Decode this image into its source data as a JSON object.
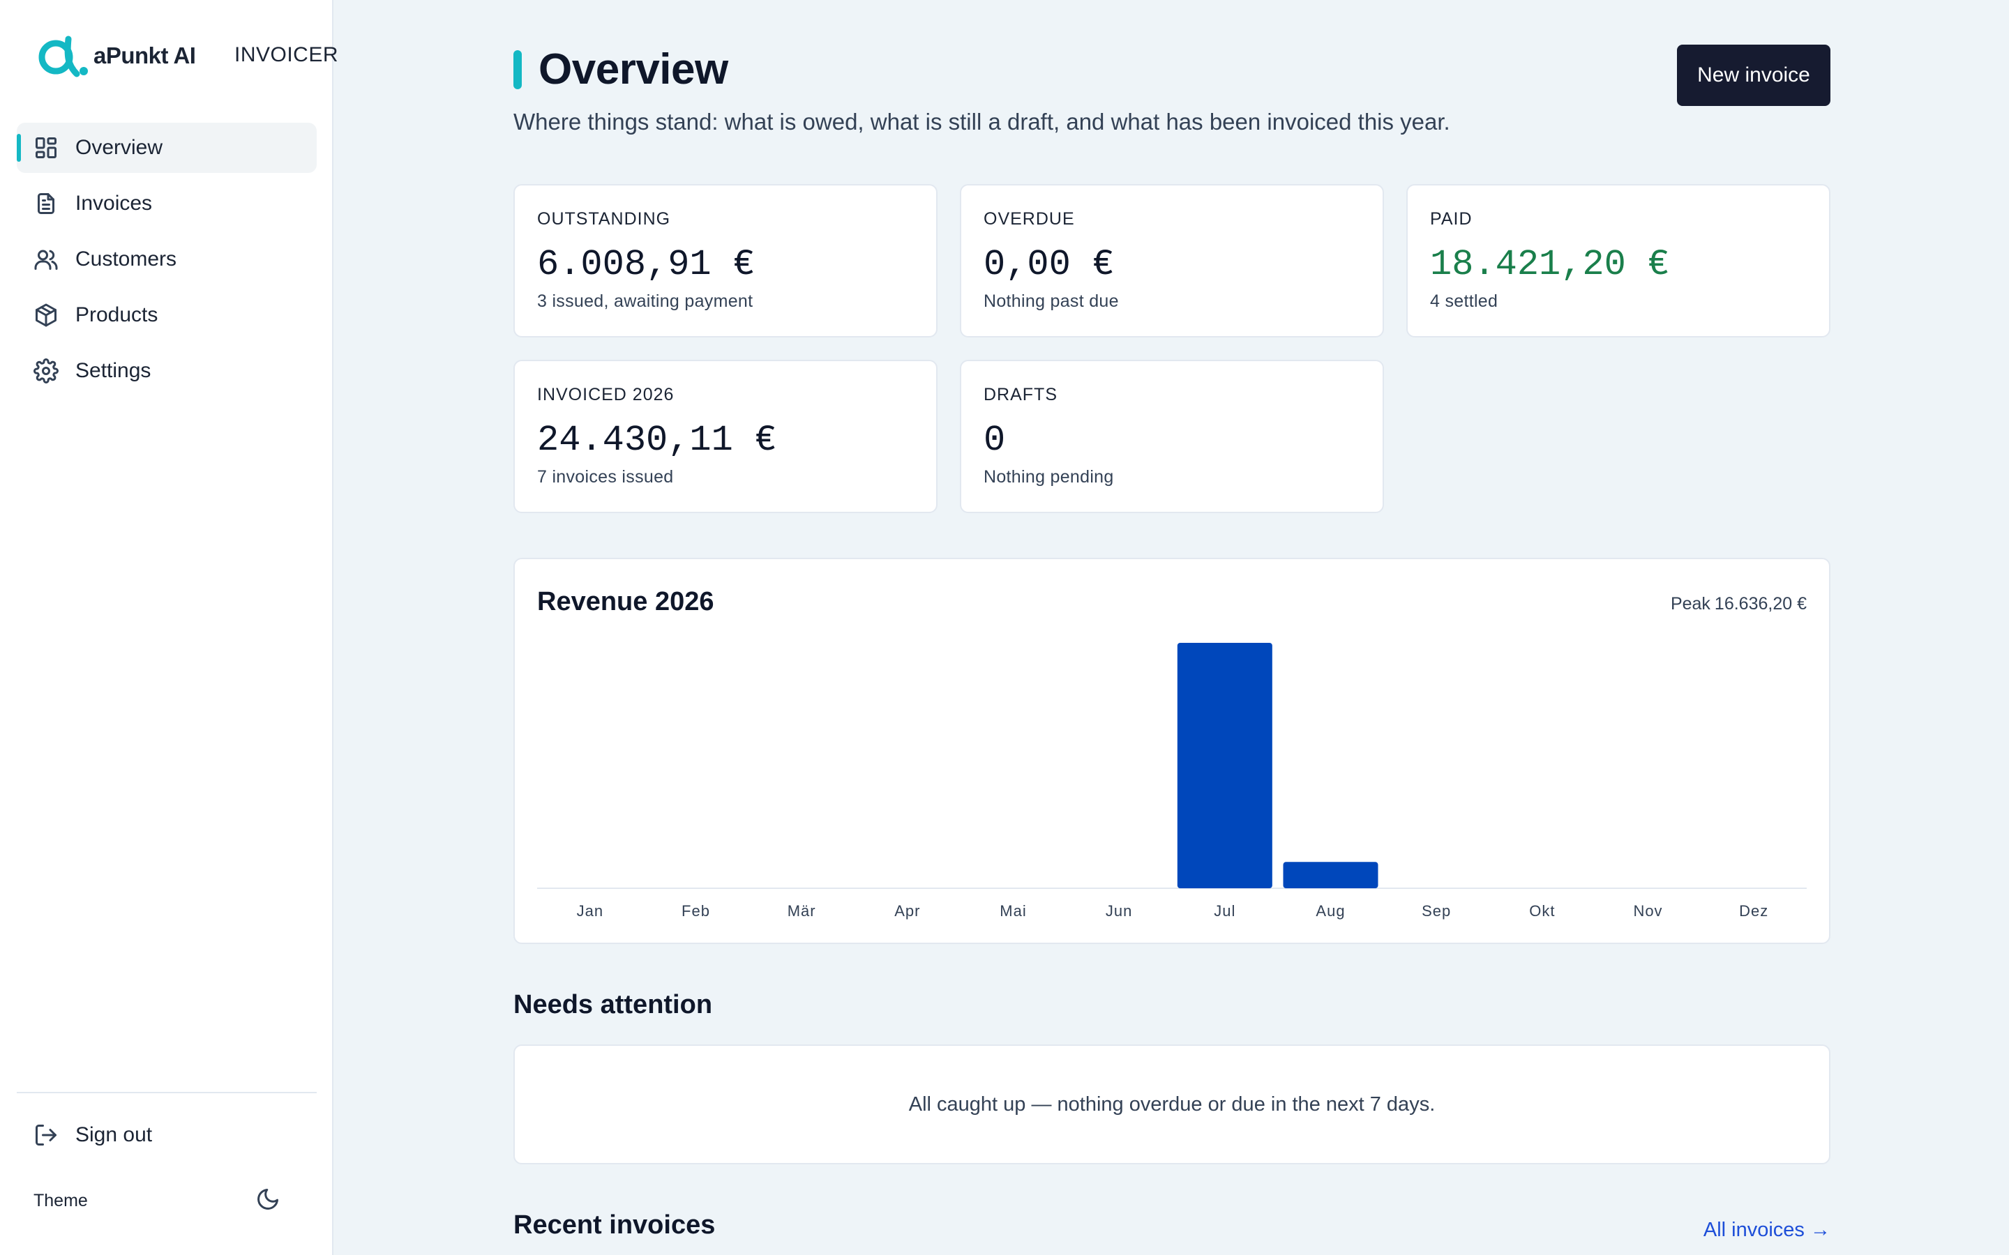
{
  "brand": {
    "name": "aPunkt AI",
    "app": "INVOICER",
    "accent": "#14b8c4"
  },
  "sidebar": {
    "items": [
      {
        "label": "Overview",
        "icon": "dashboard-icon",
        "active": true
      },
      {
        "label": "Invoices",
        "icon": "document-icon"
      },
      {
        "label": "Customers",
        "icon": "users-icon"
      },
      {
        "label": "Products",
        "icon": "box-icon"
      },
      {
        "label": "Settings",
        "icon": "gear-icon"
      }
    ],
    "signout": "Sign out",
    "theme_label": "Theme",
    "theme_icon": "moon-icon"
  },
  "header": {
    "title": "Overview",
    "subtitle": "Where things stand: what is owed, what is still a draft, and what has been invoiced this year.",
    "new_invoice": "New invoice"
  },
  "stats": {
    "outstanding": {
      "label": "OUTSTANDING",
      "value": "6.008,91 €",
      "sub": "3 issued, awaiting payment"
    },
    "overdue": {
      "label": "OVERDUE",
      "value": "0,00 €",
      "sub": "Nothing past due"
    },
    "paid": {
      "label": "PAID",
      "value": "18.421,20 €",
      "sub": "4 settled",
      "color": "#1a7f4b"
    },
    "invoiced": {
      "label": "INVOICED 2026",
      "value": "24.430,11 €",
      "sub": "7 invoices issued"
    },
    "drafts": {
      "label": "DRAFTS",
      "value": "0",
      "sub": "Nothing pending"
    }
  },
  "revenue": {
    "title": "Revenue 2026",
    "peak_label": "Peak",
    "peak_value": "16.636,20 €"
  },
  "chart_data": {
    "type": "bar",
    "title": "Revenue 2026",
    "categories": [
      "Jan",
      "Feb",
      "Mär",
      "Apr",
      "Mai",
      "Jun",
      "Jul",
      "Aug",
      "Sep",
      "Okt",
      "Nov",
      "Dez"
    ],
    "values": [
      0,
      0,
      0,
      0,
      0,
      0,
      16636.2,
      1785,
      0,
      0,
      0,
      0
    ],
    "ylim": [
      0,
      16636.2
    ],
    "bar_color": "#0047bb",
    "grid": false
  },
  "attention": {
    "title": "Needs attention",
    "empty": "All caught up — nothing overdue or due in the next 7 days."
  },
  "recent": {
    "title": "Recent invoices",
    "link": "All invoices →"
  }
}
